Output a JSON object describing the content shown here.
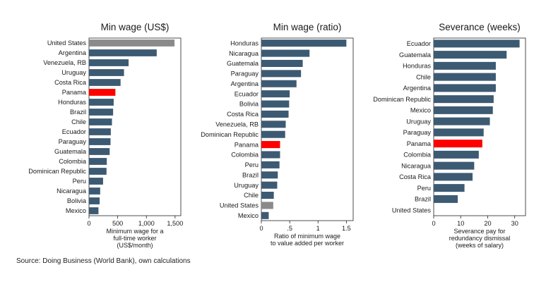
{
  "figure": {
    "source": "Source: Doing Business (World Bank), own calculations"
  },
  "colors": {
    "bar": "#3d5a73",
    "highlight": "#ff0000",
    "reference": "#8a8a8a"
  },
  "chart_data": [
    {
      "type": "bar",
      "orientation": "horizontal",
      "title": "Min wage (US$)",
      "xlabel_lines": [
        "Minimum wage for a",
        "full-time worker",
        "(US$/month)"
      ],
      "xlim": [
        0,
        1600
      ],
      "xticks": [
        0,
        500,
        1000,
        1500
      ],
      "xtick_labels": [
        "0",
        "500",
        "1,000",
        "1,500"
      ],
      "categories": [
        "United States",
        "Argentina",
        "Venezuela, RB",
        "Uruguay",
        "Costa Rica",
        "Panama",
        "Honduras",
        "Brazil",
        "Chile",
        "Ecuador",
        "Paraguay",
        "Guatemala",
        "Colombia",
        "Dominican Republic",
        "Peru",
        "Nicaragua",
        "Bolivia",
        "Mexico"
      ],
      "values": [
        1490,
        1180,
        690,
        610,
        550,
        460,
        430,
        420,
        400,
        380,
        375,
        360,
        310,
        305,
        245,
        195,
        185,
        165
      ],
      "bar_colors": [
        "reference",
        "bar",
        "bar",
        "bar",
        "bar",
        "highlight",
        "bar",
        "bar",
        "bar",
        "bar",
        "bar",
        "bar",
        "bar",
        "bar",
        "bar",
        "bar",
        "bar",
        "bar"
      ]
    },
    {
      "type": "bar",
      "orientation": "horizontal",
      "title": "Min wage (ratio)",
      "xlabel_lines": [
        "Ratio of minimum wage",
        "to value added per worker"
      ],
      "xlim": [
        0,
        1.62
      ],
      "xticks": [
        0,
        0.5,
        1,
        1.5
      ],
      "xtick_labels": [
        "0",
        ".5",
        "1",
        "1.5"
      ],
      "categories": [
        "Honduras",
        "Nicaragua",
        "Guatemala",
        "Paraguay",
        "Argentina",
        "Ecuador",
        "Bolivia",
        "Costa Rica",
        "Venezuela, RB",
        "Dominican Republic",
        "Panama",
        "Colombia",
        "Peru",
        "Brazil",
        "Uruguay",
        "Chile",
        "United States",
        "Mexico"
      ],
      "values": [
        1.5,
        0.85,
        0.73,
        0.7,
        0.62,
        0.5,
        0.49,
        0.48,
        0.43,
        0.42,
        0.33,
        0.33,
        0.32,
        0.29,
        0.28,
        0.22,
        0.21,
        0.13
      ],
      "bar_colors": [
        "bar",
        "bar",
        "bar",
        "bar",
        "bar",
        "bar",
        "bar",
        "bar",
        "bar",
        "bar",
        "highlight",
        "bar",
        "bar",
        "bar",
        "bar",
        "bar",
        "reference",
        "bar"
      ]
    },
    {
      "type": "bar",
      "orientation": "horizontal",
      "title": "Severance (weeks)",
      "xlabel_lines": [
        "Severance pay for",
        "redundancy dismissal",
        "(weeks of salary)"
      ],
      "xlim": [
        0,
        34
      ],
      "xticks": [
        0,
        10,
        20,
        30
      ],
      "xtick_labels": [
        "0",
        "10",
        "20",
        "30"
      ],
      "categories": [
        "Ecuador",
        "Guatemala",
        "Honduras",
        "Chile",
        "Argentina",
        "Dominican Republic",
        "Mexico",
        "Uruguay",
        "Paraguay",
        "Panama",
        "Colombia",
        "Nicaragua",
        "Costa Rica",
        "Peru",
        "Brazil",
        "United States"
      ],
      "values": [
        31.8,
        27,
        23,
        23,
        23,
        22.2,
        21.9,
        20.8,
        18.5,
        18,
        16.7,
        15,
        14.4,
        11.4,
        8.9,
        0
      ],
      "bar_colors": [
        "bar",
        "bar",
        "bar",
        "bar",
        "bar",
        "bar",
        "bar",
        "bar",
        "bar",
        "highlight",
        "bar",
        "bar",
        "bar",
        "bar",
        "bar",
        "bar"
      ]
    }
  ]
}
